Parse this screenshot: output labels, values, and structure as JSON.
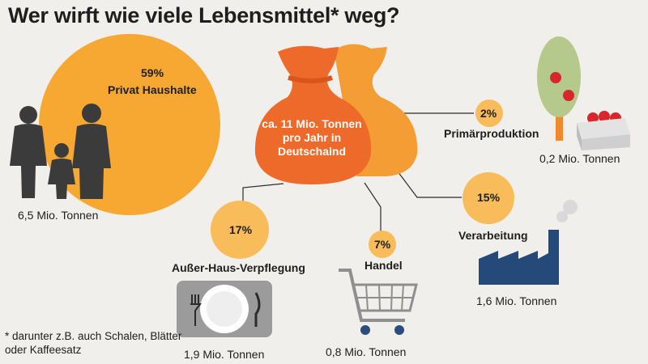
{
  "title": "Wer wirft wie viele Lebensmittel* weg?",
  "center_label": "ca. 11 Mio. Tonnen pro Jahr in Deutschalnd",
  "segments": [
    {
      "id": "private",
      "percent": "59%",
      "label": "Privat Haushalte",
      "amount": "6,5 Mio. Tonnen"
    },
    {
      "id": "primary",
      "percent": "2%",
      "label": "Primärproduktion",
      "amount": "0,2 Mio. Tonnen"
    },
    {
      "id": "processing",
      "percent": "15%",
      "label": "Verarbeitung",
      "amount": "1,6 Mio. Tonnen"
    },
    {
      "id": "catering",
      "percent": "17%",
      "label": "Außer-Haus-Verpflegung",
      "amount": "1,9 Mio. Tonnen"
    },
    {
      "id": "retail",
      "percent": "7%",
      "label": "Handel",
      "amount": "0,8 Mio. Tonnen"
    }
  ],
  "footnote": "* darunter z.B. auch Schalen, Blätter oder Kaffeesatz",
  "colors": {
    "background": "#f0efeb",
    "bubble": "#f7a833",
    "small_bubble": "#f9bc5a",
    "sack_front": "#ee6a2a",
    "sack_back": "#f49d34",
    "factory": "#254a7a",
    "icon_gray": "#3b3b3b",
    "cart": "#8f8f8f",
    "plate": "#9b9b9b",
    "tree": "#b6c98d",
    "apple": "#d8262c"
  }
}
